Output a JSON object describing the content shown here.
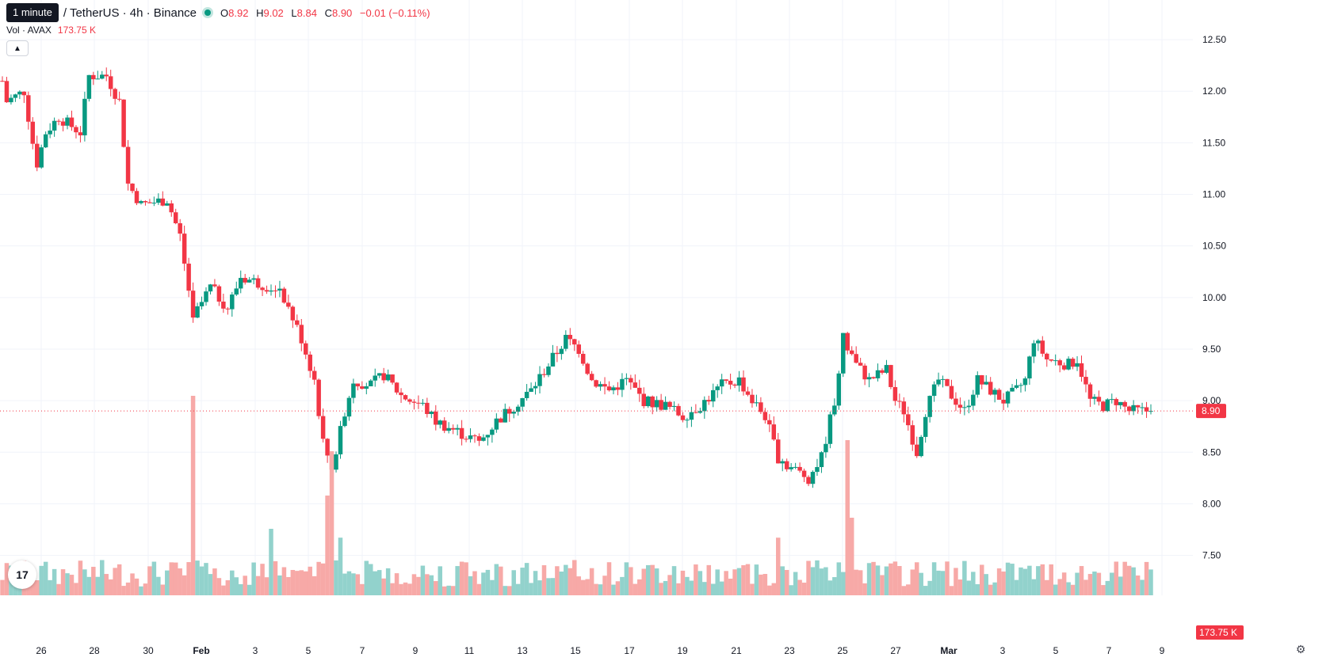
{
  "header": {
    "tooltip": "1 minute",
    "symbol": "/ TetherUS · 4h · Binance",
    "ohlc": {
      "o_label": "O",
      "o": "8.92",
      "h_label": "H",
      "h": "9.02",
      "l_label": "L",
      "l": "8.84",
      "c_label": "C",
      "c": "8.90",
      "change": "−0.01 (−0.11%)"
    },
    "volume_label": "Vol · AVAX",
    "volume_value": "173.75 K",
    "collapse_icon": "chevron-up-icon"
  },
  "logo_text": "17",
  "price_badge": "8.90",
  "volume_badge": "173.75 K",
  "colors": {
    "up": "#089981",
    "down": "#f23645",
    "up_volume": "#92d2cc",
    "down_volume": "#f7a9a7",
    "grid": "#f0f3fa"
  },
  "chart_data": {
    "type": "candlestick",
    "ylim": [
      7.0,
      12.75
    ],
    "y_ticks": [
      "12.50",
      "12.00",
      "11.50",
      "11.00",
      "10.50",
      "10.00",
      "9.50",
      "9.00",
      "8.50",
      "8.00",
      "7.50"
    ],
    "x_ticks": [
      "26",
      "28",
      "30",
      "Feb",
      "3",
      "5",
      "7",
      "9",
      "11",
      "13",
      "15",
      "17",
      "19",
      "21",
      "23",
      "25",
      "27",
      "Mar",
      "3",
      "5",
      "7",
      "9"
    ],
    "last_price": 8.9,
    "price_anchors": [
      [
        0,
        12.1
      ],
      [
        1,
        11.9
      ],
      [
        5,
        12.0
      ],
      [
        7,
        11.5
      ],
      [
        8,
        11.3
      ],
      [
        10,
        11.6
      ],
      [
        13,
        11.75
      ],
      [
        18,
        11.6
      ],
      [
        20,
        12.15
      ],
      [
        24,
        12.15
      ],
      [
        27,
        11.9
      ],
      [
        29,
        11.1
      ],
      [
        32,
        10.9
      ],
      [
        38,
        10.95
      ],
      [
        41,
        10.6
      ],
      [
        44,
        9.8
      ],
      [
        48,
        10.1
      ],
      [
        52,
        9.9
      ],
      [
        55,
        10.2
      ],
      [
        62,
        10.1
      ],
      [
        64,
        10.1
      ],
      [
        66,
        9.9
      ],
      [
        69,
        9.6
      ],
      [
        72,
        9.2
      ],
      [
        74,
        8.6
      ],
      [
        76,
        8.35
      ],
      [
        79,
        8.9
      ],
      [
        81,
        9.2
      ],
      [
        85,
        9.15
      ],
      [
        88,
        9.25
      ],
      [
        92,
        9.05
      ],
      [
        97,
        8.95
      ],
      [
        100,
        8.8
      ],
      [
        105,
        8.7
      ],
      [
        110,
        8.6
      ],
      [
        114,
        8.8
      ],
      [
        118,
        8.95
      ],
      [
        122,
        9.1
      ],
      [
        126,
        9.35
      ],
      [
        130,
        9.6
      ],
      [
        133,
        9.5
      ],
      [
        136,
        9.2
      ],
      [
        140,
        9.1
      ],
      [
        144,
        9.2
      ],
      [
        148,
        9.0
      ],
      [
        153,
        8.95
      ],
      [
        157,
        8.85
      ],
      [
        161,
        8.95
      ],
      [
        166,
        9.15
      ],
      [
        170,
        9.2
      ],
      [
        173,
        9.0
      ],
      [
        176,
        8.85
      ],
      [
        179,
        8.45
      ],
      [
        182,
        8.35
      ],
      [
        186,
        8.25
      ],
      [
        189,
        8.45
      ],
      [
        192,
        9.0
      ],
      [
        194,
        9.6
      ],
      [
        197,
        9.35
      ],
      [
        200,
        9.2
      ],
      [
        204,
        9.3
      ],
      [
        206,
        9.0
      ],
      [
        208,
        8.9
      ],
      [
        211,
        8.5
      ],
      [
        213,
        8.9
      ],
      [
        216,
        9.2
      ],
      [
        219,
        9.05
      ],
      [
        222,
        8.9
      ],
      [
        225,
        9.2
      ],
      [
        228,
        9.1
      ],
      [
        231,
        9.0
      ],
      [
        234,
        9.1
      ],
      [
        236,
        9.2
      ],
      [
        238,
        9.6
      ],
      [
        241,
        9.4
      ],
      [
        246,
        9.35
      ],
      [
        248,
        9.4
      ],
      [
        251,
        9.0
      ],
      [
        254,
        8.95
      ],
      [
        257,
        9.0
      ],
      [
        260,
        8.9
      ],
      [
        264,
        8.9
      ],
      [
        265,
        8.9
      ]
    ],
    "candle_count": 266,
    "volume_spikes": [
      [
        44,
        9.0
      ],
      [
        76,
        6.5
      ],
      [
        75,
        4.5
      ],
      [
        78,
        2.6
      ],
      [
        195,
        7.0
      ],
      [
        196,
        3.5
      ],
      [
        179,
        2.6
      ],
      [
        62,
        3.0
      ]
    ]
  }
}
